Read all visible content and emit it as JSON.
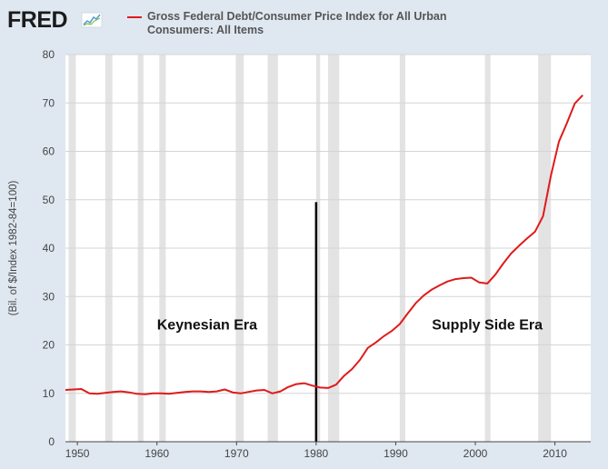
{
  "brand": {
    "logo_text": "FRED",
    "logo_icon": "sparkline-chart-icon"
  },
  "chart_data": {
    "type": "line",
    "title": "",
    "xlabel": "",
    "ylabel": "(Bil. of $/Index 1982-84=100)",
    "xlim": [
      1948.5,
      2014.5
    ],
    "ylim": [
      0,
      80
    ],
    "x_ticks": [
      1950,
      1960,
      1970,
      1980,
      1990,
      2000,
      2010
    ],
    "y_ticks": [
      0,
      10,
      20,
      30,
      40,
      50,
      60,
      70,
      80
    ],
    "grid": "horizontal",
    "legend_position": "top",
    "series": [
      {
        "name": "Gross Federal Debt/Consumer Price Index for All Urban Consumers: All Items",
        "color": "#e01a1a",
        "x": [
          1948.5,
          1949.5,
          1950.5,
          1951.5,
          1952.5,
          1953.5,
          1954.5,
          1955.5,
          1956.5,
          1957.5,
          1958.5,
          1959.5,
          1960.5,
          1961.5,
          1962.5,
          1963.5,
          1964.5,
          1965.5,
          1966.5,
          1967.5,
          1968.5,
          1969.5,
          1970.5,
          1971.5,
          1972.5,
          1973.5,
          1974.5,
          1975.5,
          1976.5,
          1977.5,
          1978.5,
          1979.5,
          1980.5,
          1981.5,
          1982.5,
          1983.5,
          1984.5,
          1985.5,
          1986.5,
          1987.5,
          1988.5,
          1989.5,
          1990.5,
          1991.5,
          1992.5,
          1993.5,
          1994.5,
          1995.5,
          1996.5,
          1997.5,
          1998.5,
          1999.5,
          2000.5,
          2001.5,
          2002.5,
          2003.5,
          2004.5,
          2005.5,
          2006.5,
          2007.5,
          2008.5,
          2009.5,
          2010.5,
          2011.5,
          2012.5,
          2013.5
        ],
        "values": [
          10.7,
          10.8,
          10.9,
          10.0,
          9.9,
          10.1,
          10.3,
          10.4,
          10.2,
          9.9,
          9.8,
          10.0,
          10.0,
          9.9,
          10.1,
          10.3,
          10.4,
          10.4,
          10.3,
          10.4,
          10.8,
          10.2,
          10.0,
          10.3,
          10.6,
          10.7,
          10.0,
          10.4,
          11.3,
          11.9,
          12.1,
          11.6,
          11.2,
          11.1,
          11.8,
          13.6,
          15.0,
          16.9,
          19.4,
          20.5,
          21.8,
          22.9,
          24.3,
          26.5,
          28.6,
          30.2,
          31.4,
          32.3,
          33.1,
          33.6,
          33.8,
          33.9,
          32.9,
          32.7,
          34.5,
          36.8,
          38.9,
          40.5,
          42.0,
          43.4,
          46.6,
          55.0,
          62.0,
          65.8,
          69.9,
          71.6
        ]
      }
    ],
    "recessions": [
      [
        1948.9,
        1949.8
      ],
      [
        1953.5,
        1954.4
      ],
      [
        1957.6,
        1958.3
      ],
      [
        1960.3,
        1961.1
      ],
      [
        1969.9,
        1970.9
      ],
      [
        1973.9,
        1975.2
      ],
      [
        1980.0,
        1980.5
      ],
      [
        1981.5,
        1982.9
      ],
      [
        1990.5,
        1991.2
      ],
      [
        2001.2,
        2001.9
      ],
      [
        2007.9,
        2009.5
      ]
    ],
    "annotations": [
      {
        "text": "Keynesian Era",
        "x": 1966.3,
        "y": 23.2
      },
      {
        "text": "Supply Side Era",
        "x": 2001.5,
        "y": 23.2
      }
    ],
    "marker_line": {
      "x": 1980,
      "y_from": 0,
      "y_to": 49.5
    }
  }
}
